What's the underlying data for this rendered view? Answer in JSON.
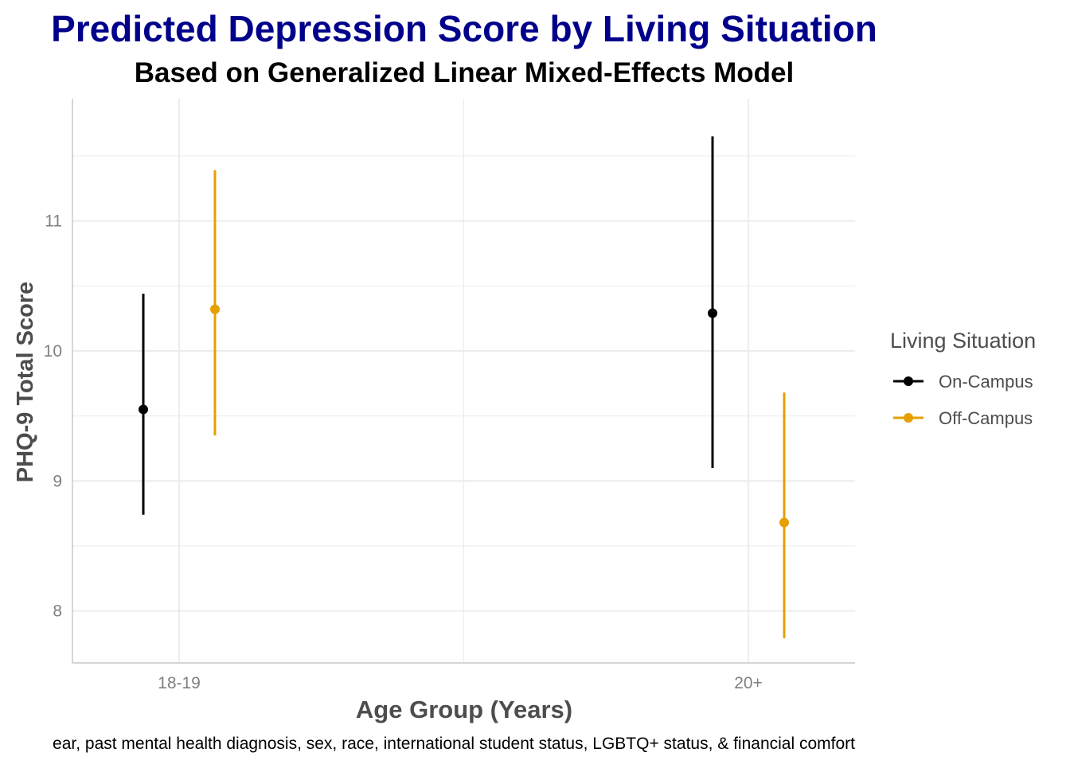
{
  "chart_data": {
    "type": "pointrange",
    "title": "Predicted Depression Score by Living Situation",
    "subtitle": "Based on Generalized Linear Mixed-Effects Model",
    "xlabel": "Age Group (Years)",
    "ylabel": "PHQ-9 Total Score",
    "caption": "ear, past mental health diagnosis, sex, race, international student status, LGBTQ+ status, & financial comfort",
    "categories": [
      "18-19",
      "20+"
    ],
    "y_ticks": [
      8,
      9,
      10,
      11
    ],
    "ylim": [
      7.6,
      11.94
    ],
    "grid": true,
    "legend": {
      "title": "Living Situation",
      "position": "right"
    },
    "series": [
      {
        "name": "On-Campus",
        "color": "#000000",
        "points": [
          {
            "x": "18-19",
            "estimate": 9.55,
            "lower": 8.74,
            "upper": 10.44
          },
          {
            "x": "20+",
            "estimate": 10.29,
            "lower": 9.1,
            "upper": 11.65
          }
        ]
      },
      {
        "name": "Off-Campus",
        "color": "#E69F00",
        "points": [
          {
            "x": "18-19",
            "estimate": 10.32,
            "lower": 9.35,
            "upper": 11.39
          },
          {
            "x": "20+",
            "estimate": 8.68,
            "lower": 7.79,
            "upper": 9.68
          }
        ]
      }
    ],
    "colors": {
      "title": "#00008B",
      "grid": "#EBEBEB",
      "axis_line": "#C8C8C8",
      "tick_label": "#7F7F7F",
      "axis_title": "#4D4D4D"
    }
  }
}
